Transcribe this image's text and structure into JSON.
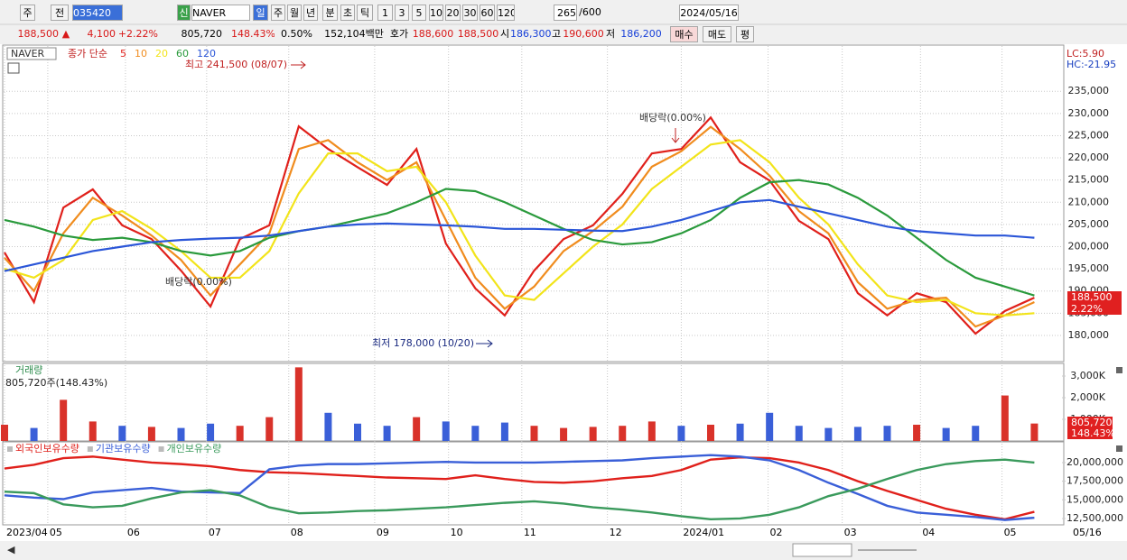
{
  "toolbar": {
    "row1": [
      "주",
      "전",
      "035420",
      "신",
      "NAVER",
      "일",
      "주",
      "월",
      "년",
      "분",
      "초",
      "틱",
      "1",
      "3",
      "5",
      "10",
      "20",
      "30",
      "60",
      "120",
      "265",
      "/600",
      "2024/05/16"
    ],
    "row2": [
      "188,500",
      "▲",
      "4,100",
      "+2.22%",
      "805,720",
      "148.43%",
      "0.50%",
      "152,104백만",
      "호가",
      "188,600",
      "188,500",
      "시",
      "186,300",
      "고",
      "190,600",
      "저",
      "186,200",
      "매수",
      "매도",
      "평"
    ]
  },
  "chart_data": [
    {
      "type": "line",
      "name": "NAVER",
      "legend_title": "종가 단순",
      "xlim": [
        0,
        36
      ],
      "xticks": [
        {
          "value": 0,
          "label": "2023/04"
        },
        {
          "value": 1.47,
          "label": "05"
        },
        {
          "value": 4.11,
          "label": "06"
        },
        {
          "value": 6.87,
          "label": "07"
        },
        {
          "value": 9.66,
          "label": "08"
        },
        {
          "value": 12.58,
          "label": "09"
        },
        {
          "value": 15.09,
          "label": "10"
        },
        {
          "value": 17.58,
          "label": "11"
        },
        {
          "value": 20.49,
          "label": "12"
        },
        {
          "value": 23.0,
          "label": "2024/01"
        },
        {
          "value": 25.95,
          "label": "02"
        },
        {
          "value": 28.47,
          "label": "03"
        },
        {
          "value": 31.13,
          "label": "04"
        },
        {
          "value": 33.9,
          "label": "05"
        }
      ],
      "x_end_label": "05/16",
      "ylim": [
        174300,
        245000
      ],
      "yticks": [
        {
          "value": 180000,
          "label": "180,000"
        },
        {
          "value": 185000,
          "label": "185,000"
        },
        {
          "value": 190000,
          "label": "190,000"
        },
        {
          "value": 195000,
          "label": "195,000"
        },
        {
          "value": 200000,
          "label": "200,000"
        },
        {
          "value": 205000,
          "label": "205,000"
        },
        {
          "value": 210000,
          "label": "210,000"
        },
        {
          "value": 215000,
          "label": "215,000"
        },
        {
          "value": 220000,
          "label": "220,000"
        },
        {
          "value": 225000,
          "label": "225,000"
        },
        {
          "value": 230000,
          "label": "230,000"
        },
        {
          "value": 235000,
          "label": "235,000"
        }
      ],
      "grid": true,
      "lc_label": "LC:5.90",
      "hc_label": "HC:-21.95",
      "current_label": "188,500",
      "current_change": "2.22%",
      "annotations": [
        "최고 241,500 (08/07)",
        "배당락(0.00%)",
        "배당락(0.00%)",
        "최저 178,000 (10/20)"
      ],
      "series": [
        {
          "name": "5",
          "color": "#e0201b",
          "width": 2.2,
          "values": [
            198700,
            187500,
            208800,
            212900,
            204800,
            201700,
            194600,
            186500,
            201700,
            204800,
            227100,
            222000,
            217900,
            213900,
            222000,
            200700,
            190600,
            184500,
            194600,
            201700,
            204800,
            211900,
            221000,
            222000,
            229100,
            219000,
            214900,
            205800,
            201700,
            189500,
            184500,
            189500,
            187500,
            180400,
            185500,
            188500
          ]
        },
        {
          "name": "10",
          "color": "#f08c1e",
          "width": 2.2,
          "values": [
            197500,
            190000,
            203000,
            211000,
            207000,
            202500,
            197000,
            189000,
            196000,
            203000,
            222000,
            224000,
            219000,
            215000,
            219000,
            206000,
            193000,
            186000,
            191000,
            199000,
            203500,
            209000,
            218000,
            221500,
            227000,
            222000,
            216000,
            208000,
            203000,
            192000,
            186000,
            188000,
            188500,
            182000,
            184500,
            187500
          ]
        },
        {
          "name": "20",
          "color": "#f2e41a",
          "width": 2.2,
          "values": [
            195000,
            193000,
            197000,
            206000,
            208000,
            204000,
            199000,
            193000,
            193000,
            199000,
            212000,
            221000,
            221000,
            217000,
            218000,
            210000,
            198000,
            189000,
            188000,
            194000,
            200000,
            205000,
            213000,
            218000,
            223000,
            224000,
            219000,
            211000,
            205000,
            196000,
            189000,
            187500,
            188000,
            185000,
            184500,
            185000
          ]
        },
        {
          "name": "60",
          "color": "#2a9a3c",
          "width": 2.2,
          "values": [
            206000,
            204500,
            202500,
            201500,
            202000,
            201000,
            199000,
            198000,
            199000,
            202000,
            203500,
            204500,
            206000,
            207500,
            210000,
            213000,
            212500,
            210000,
            207000,
            204000,
            201500,
            200500,
            201000,
            203000,
            206000,
            211000,
            214500,
            215000,
            214000,
            211000,
            207000,
            202000,
            197000,
            193000,
            191000,
            189000
          ]
        },
        {
          "name": "120",
          "color": "#2b56d8",
          "width": 2.2,
          "values": [
            194500,
            196000,
            197500,
            199000,
            200000,
            201000,
            201500,
            201800,
            202000,
            202500,
            203500,
            204500,
            205000,
            205200,
            205000,
            204800,
            204500,
            204000,
            204000,
            203800,
            203600,
            203500,
            204500,
            206000,
            208000,
            210000,
            210500,
            209000,
            207500,
            206000,
            204500,
            203500,
            203000,
            202500,
            202500,
            202000
          ]
        }
      ]
    },
    {
      "type": "bar",
      "title": "거래량",
      "subtitle": "805,720주(148.43%)",
      "xlim": [
        0,
        36
      ],
      "ylim": [
        0,
        3540
      ],
      "yticks": [
        {
          "value": 1000,
          "label": "1,000K"
        },
        {
          "value": 2000,
          "label": "2,000K"
        },
        {
          "value": 3000,
          "label": "3,000K"
        }
      ],
      "current_label": "805,720",
      "current_change": "148.43%",
      "series": [
        {
          "name": "거래량",
          "values": [
            750,
            600,
            1900,
            900,
            700,
            650,
            600,
            800,
            700,
            1100,
            3400,
            1300,
            800,
            700,
            1100,
            900,
            700,
            850,
            700,
            600,
            650,
            700,
            900,
            700,
            750,
            800,
            1300,
            700,
            600,
            650,
            700,
            750,
            600,
            700,
            2100,
            805.72
          ],
          "colors": [
            "#d9322a",
            "#3a5fd8",
            "#d9322a",
            "#d9322a",
            "#3a5fd8",
            "#d9322a",
            "#3a5fd8",
            "#3a5fd8",
            "#d9322a",
            "#d9322a",
            "#d9322a",
            "#3a5fd8",
            "#3a5fd8",
            "#3a5fd8",
            "#d9322a",
            "#3a5fd8",
            "#3a5fd8",
            "#3a5fd8",
            "#d9322a",
            "#d9322a",
            "#d9322a",
            "#d9322a",
            "#d9322a",
            "#3a5fd8",
            "#d9322a",
            "#3a5fd8",
            "#3a5fd8",
            "#3a5fd8",
            "#3a5fd8",
            "#3a5fd8",
            "#3a5fd8",
            "#d9322a",
            "#3a5fd8",
            "#3a5fd8",
            "#d9322a",
            "#d9322a"
          ]
        }
      ]
    },
    {
      "type": "line",
      "xlim": [
        0,
        36
      ],
      "ylim": [
        11650000,
        22780000
      ],
      "yticks": [
        {
          "value": 12500000,
          "label": "12,500,000"
        },
        {
          "value": 15000000,
          "label": "15,000,000"
        },
        {
          "value": 17500000,
          "label": "17,500,000"
        },
        {
          "value": 20000000,
          "label": "20,000,000"
        }
      ],
      "series": [
        {
          "name": "외국인보유수량",
          "color": "#e0201b",
          "width": 2.4,
          "values": [
            19200000,
            19700000,
            20600000,
            20800000,
            20400000,
            20000000,
            19800000,
            19500000,
            19000000,
            18700000,
            18600000,
            18400000,
            18200000,
            18000000,
            17900000,
            17800000,
            18300000,
            17800000,
            17400000,
            17300000,
            17500000,
            17900000,
            18200000,
            19000000,
            20400000,
            20700000,
            20600000,
            20000000,
            19000000,
            17500000,
            16200000,
            15000000,
            13800000,
            13000000,
            12400000,
            13400000
          ]
        },
        {
          "name": "기관보유수량",
          "color": "#3a5fd8",
          "width": 2.4,
          "values": [
            15600000,
            15300000,
            15100000,
            16000000,
            16300000,
            16600000,
            16100000,
            16000000,
            15900000,
            19100000,
            19600000,
            19800000,
            19800000,
            19900000,
            20000000,
            20100000,
            20000000,
            20000000,
            20000000,
            20100000,
            20200000,
            20300000,
            20600000,
            20800000,
            21000000,
            20800000,
            20300000,
            19000000,
            17300000,
            15800000,
            14200000,
            13300000,
            13000000,
            12700000,
            12300000,
            12600000
          ]
        },
        {
          "name": "개인보유수량",
          "color": "#3a9a5c",
          "width": 2.4,
          "values": [
            16100000,
            15900000,
            14400000,
            14000000,
            14200000,
            15200000,
            16000000,
            16300000,
            15600000,
            14000000,
            13200000,
            13300000,
            13500000,
            13600000,
            13800000,
            14000000,
            14300000,
            14600000,
            14800000,
            14500000,
            14000000,
            13700000,
            13300000,
            12800000,
            12400000,
            12500000,
            13000000,
            14000000,
            15500000,
            16500000,
            17800000,
            19000000,
            19800000,
            20200000,
            20400000,
            20000000
          ]
        }
      ]
    }
  ]
}
